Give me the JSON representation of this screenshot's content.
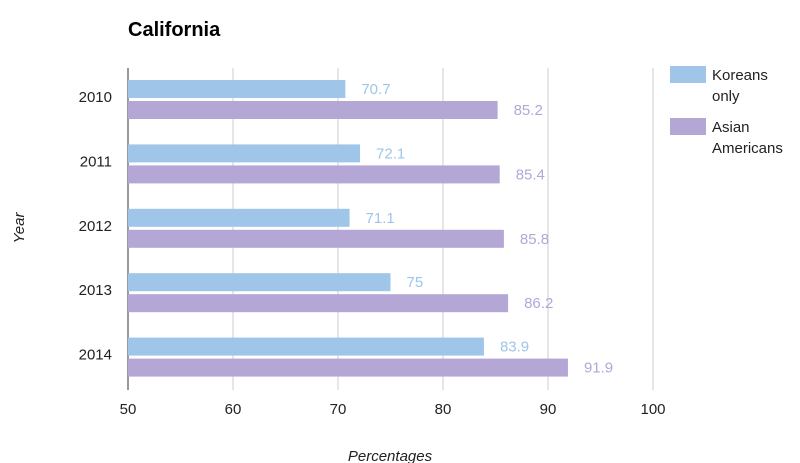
{
  "colors": {
    "koreans": "#9fc5e8",
    "asian": "#b4a7d6",
    "grid": "#cccccc"
  },
  "chart_data": {
    "type": "bar",
    "orientation": "horizontal",
    "title": "California",
    "xlabel": "Percentages",
    "ylabel": "Year",
    "categories": [
      "2010",
      "2011",
      "2012",
      "2013",
      "2014"
    ],
    "series": [
      {
        "name": "Koreans only",
        "legend_lines": [
          "Koreans",
          "only"
        ],
        "values": [
          70.7,
          72.1,
          71.1,
          75,
          83.9
        ],
        "labels": [
          "70.7",
          "72.1",
          "71.1",
          "75",
          "83.9"
        ],
        "color": "#9fc5e8"
      },
      {
        "name": "Asian Americans",
        "legend_lines": [
          "Asian",
          "Americans"
        ],
        "values": [
          85.2,
          85.4,
          85.8,
          86.2,
          91.9
        ],
        "labels": [
          "85.2",
          "85.4",
          "85.8",
          "86.2",
          "91.9"
        ],
        "color": "#b4a7d6"
      }
    ],
    "xlim": [
      50,
      100
    ],
    "xticks": [
      "50",
      "60",
      "70",
      "80",
      "90",
      "100"
    ],
    "grid": true,
    "legend": "right"
  }
}
